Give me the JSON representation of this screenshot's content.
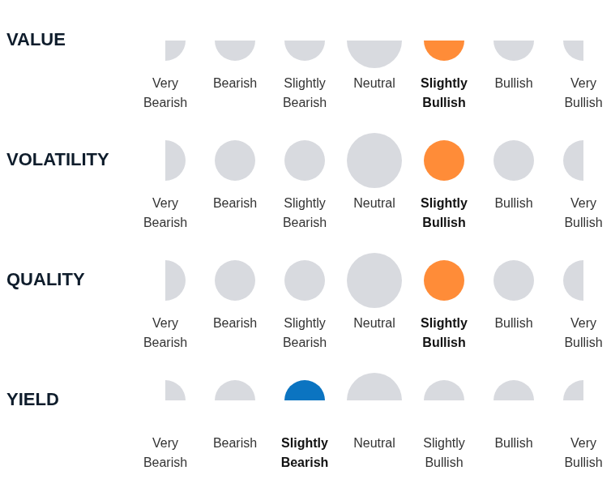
{
  "chart_data": {
    "type": "rating",
    "levels": [
      "Very Bearish",
      "Bearish",
      "Slightly Bearish",
      "Neutral",
      "Slightly Bullish",
      "Bullish",
      "Very Bullish"
    ],
    "rows": [
      {
        "name": "VALUE",
        "rating": "Slightly Bullish",
        "color": "#ff8c38"
      },
      {
        "name": "VOLATILITY",
        "rating": "Slightly Bullish",
        "color": "#ff8c38"
      },
      {
        "name": "QUALITY",
        "rating": "Slightly Bullish",
        "color": "#ff8c38"
      },
      {
        "name": "YIELD",
        "rating": "Slightly Bearish",
        "color": "#0b74c1"
      }
    ]
  }
}
